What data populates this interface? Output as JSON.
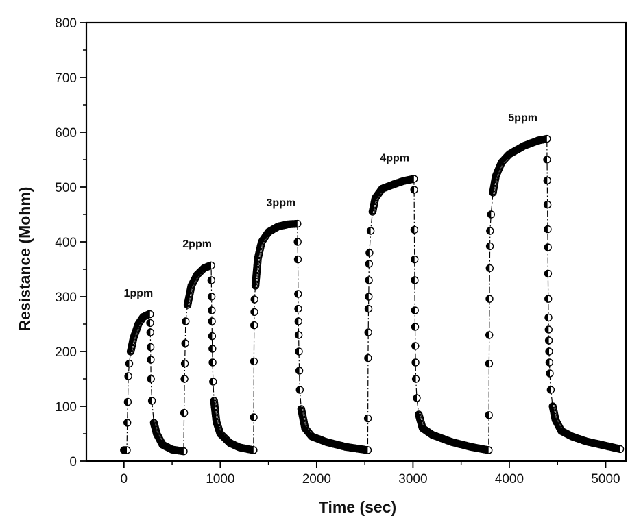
{
  "chart_data": {
    "type": "scatter",
    "title": "",
    "xlabel": "Time (sec)",
    "ylabel": "Resistance (Mohm)",
    "xlim": [
      -390,
      5210
    ],
    "ylim": [
      0,
      800
    ],
    "x_ticks": [
      0,
      1000,
      2000,
      3000,
      4000,
      5000
    ],
    "x_tick_labels": [
      "0",
      "1000",
      "2000",
      "3000",
      "4000",
      "5000"
    ],
    "x_minor_ticks": [
      500,
      1500,
      2500,
      3500,
      4500
    ],
    "y_ticks": [
      0,
      100,
      200,
      300,
      400,
      500,
      600,
      700,
      800
    ],
    "y_tick_labels": [
      "0",
      "100",
      "200",
      "300",
      "400",
      "500",
      "600",
      "700",
      "800"
    ],
    "y_minor_ticks": [
      50,
      150,
      250,
      350,
      450,
      550,
      650,
      750
    ],
    "grid": false,
    "legend": "none",
    "marker": "half-filled-circle",
    "line_style": "dash-dot",
    "color": "#000000",
    "series": [
      {
        "name": "1ppm",
        "baseline_start": 20,
        "gas_on_time": 30,
        "gas_off_time": 270,
        "peak": 268,
        "recovery_end_time": 620,
        "baseline_end": 18,
        "points": [
          [
            0,
            20
          ],
          [
            30,
            20
          ],
          [
            35,
            70
          ],
          [
            40,
            108
          ],
          [
            45,
            155
          ],
          [
            55,
            178
          ],
          [
            70,
            200
          ],
          [
            100,
            225
          ],
          [
            150,
            250
          ],
          [
            200,
            263
          ],
          [
            260,
            268
          ],
          [
            270,
            268
          ],
          [
            272,
            252
          ],
          [
            274,
            235
          ],
          [
            276,
            208
          ],
          [
            278,
            185
          ],
          [
            280,
            150
          ],
          [
            290,
            110
          ],
          [
            310,
            70
          ],
          [
            340,
            50
          ],
          [
            400,
            30
          ],
          [
            500,
            21
          ],
          [
            620,
            18
          ]
        ]
      },
      {
        "name": "2ppm",
        "baseline_start": 18,
        "gas_on_time": 625,
        "gas_off_time": 905,
        "peak": 357,
        "recovery_end_time": 1345,
        "baseline_end": 20,
        "points": [
          [
            620,
            18
          ],
          [
            625,
            88
          ],
          [
            628,
            150
          ],
          [
            632,
            178
          ],
          [
            636,
            215
          ],
          [
            640,
            255
          ],
          [
            660,
            285
          ],
          [
            700,
            320
          ],
          [
            760,
            340
          ],
          [
            830,
            352
          ],
          [
            900,
            357
          ],
          [
            905,
            357
          ],
          [
            907,
            330
          ],
          [
            909,
            300
          ],
          [
            911,
            275
          ],
          [
            913,
            255
          ],
          [
            915,
            228
          ],
          [
            918,
            205
          ],
          [
            920,
            180
          ],
          [
            925,
            145
          ],
          [
            935,
            110
          ],
          [
            960,
            72
          ],
          [
            1000,
            50
          ],
          [
            1100,
            33
          ],
          [
            1200,
            25
          ],
          [
            1345,
            20
          ]
        ]
      },
      {
        "name": "3ppm",
        "baseline_start": 20,
        "gas_on_time": 1345,
        "gas_off_time": 1800,
        "peak": 433,
        "recovery_end_time": 2530,
        "baseline_end": 20,
        "points": [
          [
            1345,
            20
          ],
          [
            1347,
            80
          ],
          [
            1349,
            182
          ],
          [
            1351,
            248
          ],
          [
            1353,
            272
          ],
          [
            1355,
            295
          ],
          [
            1365,
            320
          ],
          [
            1390,
            370
          ],
          [
            1430,
            400
          ],
          [
            1500,
            418
          ],
          [
            1600,
            428
          ],
          [
            1700,
            432
          ],
          [
            1800,
            433
          ],
          [
            1803,
            400
          ],
          [
            1805,
            368
          ],
          [
            1807,
            305
          ],
          [
            1809,
            278
          ],
          [
            1811,
            255
          ],
          [
            1813,
            230
          ],
          [
            1816,
            200
          ],
          [
            1820,
            165
          ],
          [
            1825,
            130
          ],
          [
            1840,
            95
          ],
          [
            1880,
            60
          ],
          [
            1950,
            45
          ],
          [
            2100,
            35
          ],
          [
            2300,
            26
          ],
          [
            2530,
            20
          ]
        ]
      },
      {
        "name": "4ppm",
        "baseline_start": 20,
        "gas_on_time": 2530,
        "gas_off_time": 3010,
        "peak": 515,
        "recovery_end_time": 3785,
        "baseline_end": 20,
        "points": [
          [
            2530,
            20
          ],
          [
            2532,
            78
          ],
          [
            2534,
            188
          ],
          [
            2536,
            235
          ],
          [
            2538,
            278
          ],
          [
            2540,
            300
          ],
          [
            2542,
            330
          ],
          [
            2544,
            360
          ],
          [
            2548,
            380
          ],
          [
            2560,
            420
          ],
          [
            2580,
            455
          ],
          [
            2610,
            480
          ],
          [
            2680,
            497
          ],
          [
            2800,
            505
          ],
          [
            2900,
            511
          ],
          [
            3010,
            515
          ],
          [
            3012,
            495
          ],
          [
            3014,
            422
          ],
          [
            3016,
            368
          ],
          [
            3018,
            330
          ],
          [
            3020,
            275
          ],
          [
            3022,
            245
          ],
          [
            3024,
            210
          ],
          [
            3026,
            180
          ],
          [
            3030,
            150
          ],
          [
            3040,
            115
          ],
          [
            3060,
            85
          ],
          [
            3100,
            60
          ],
          [
            3200,
            48
          ],
          [
            3400,
            35
          ],
          [
            3600,
            26
          ],
          [
            3785,
            20
          ]
        ]
      },
      {
        "name": "5ppm",
        "baseline_start": 20,
        "gas_on_time": 3790,
        "gas_off_time": 4390,
        "peak": 588,
        "recovery_end_time": 5150,
        "baseline_end": 22,
        "points": [
          [
            3785,
            20
          ],
          [
            3788,
            84
          ],
          [
            3790,
            178
          ],
          [
            3792,
            230
          ],
          [
            3794,
            296
          ],
          [
            3796,
            352
          ],
          [
            3798,
            392
          ],
          [
            3800,
            420
          ],
          [
            3810,
            450
          ],
          [
            3830,
            490
          ],
          [
            3860,
            520
          ],
          [
            3920,
            545
          ],
          [
            4000,
            560
          ],
          [
            4150,
            575
          ],
          [
            4300,
            585
          ],
          [
            4390,
            588
          ],
          [
            4392,
            550
          ],
          [
            4394,
            512
          ],
          [
            4396,
            468
          ],
          [
            4398,
            423
          ],
          [
            4400,
            390
          ],
          [
            4402,
            342
          ],
          [
            4404,
            296
          ],
          [
            4406,
            262
          ],
          [
            4408,
            240
          ],
          [
            4410,
            220
          ],
          [
            4413,
            200
          ],
          [
            4416,
            180
          ],
          [
            4420,
            160
          ],
          [
            4430,
            130
          ],
          [
            4450,
            100
          ],
          [
            4480,
            75
          ],
          [
            4540,
            55
          ],
          [
            4650,
            45
          ],
          [
            4800,
            36
          ],
          [
            5000,
            28
          ],
          [
            5150,
            22
          ]
        ]
      }
    ],
    "annotations": [
      {
        "text": "1ppm",
        "x": 150,
        "y": 300
      },
      {
        "text": "2ppm",
        "x": 760,
        "y": 390
      },
      {
        "text": "3ppm",
        "x": 1630,
        "y": 465
      },
      {
        "text": "4ppm",
        "x": 2810,
        "y": 547
      },
      {
        "text": "5ppm",
        "x": 4140,
        "y": 620
      }
    ]
  }
}
